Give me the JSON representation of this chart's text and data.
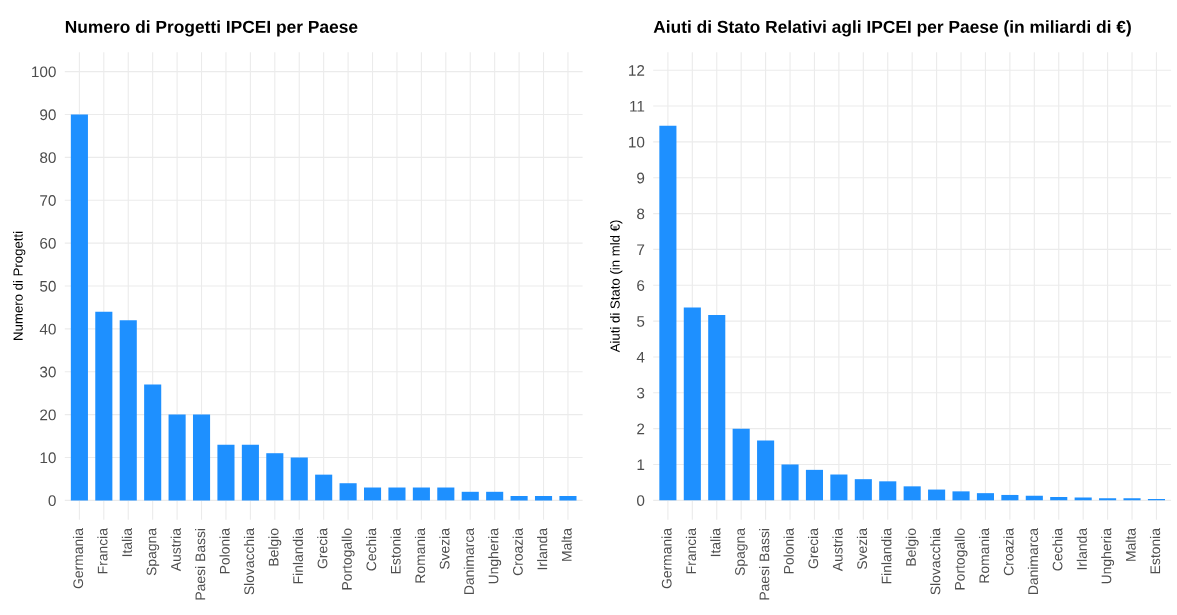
{
  "chart_data": [
    {
      "type": "bar",
      "title": "Numero di Progetti IPCEI per Paese",
      "ylabel": "Numero di Progetti",
      "categories": [
        "Germania",
        "Francia",
        "Italia",
        "Spagna",
        "Austria",
        "Paesi Bassi",
        "Polonia",
        "Slovacchia",
        "Belgio",
        "Finlandia",
        "Grecia",
        "Portogallo",
        "Cechia",
        "Estonia",
        "Romania",
        "Svezia",
        "Danimarca",
        "Ungheria",
        "Croazia",
        "Irlanda",
        "Malta"
      ],
      "values": [
        90,
        44,
        42,
        27,
        20,
        20,
        13,
        13,
        11,
        10,
        6,
        4,
        3,
        3,
        3,
        3,
        2,
        2,
        1,
        1,
        1
      ],
      "color": "#1e90ff",
      "ylim": [
        -4.5,
        104.5
      ],
      "yticks": [
        0,
        10,
        20,
        30,
        40,
        50,
        60,
        70,
        80,
        90,
        100
      ],
      "grid": true
    },
    {
      "type": "bar",
      "title": "Aiuti di Stato Relativi agli IPCEI per Paese (in miliardi di €)",
      "ylabel": "Aiuti di Stato (in mld €)",
      "categories": [
        "Germania",
        "Francia",
        "Italia",
        "Spagna",
        "Paesi Bassi",
        "Polonia",
        "Grecia",
        "Austria",
        "Svezia",
        "Finlandia",
        "Belgio",
        "Slovacchia",
        "Portogallo",
        "Romania",
        "Croazia",
        "Danimarca",
        "Cechia",
        "Irlanda",
        "Ungheria",
        "Malta",
        "Estonia"
      ],
      "values": [
        10.45,
        5.38,
        5.17,
        2.0,
        1.67,
        1.0,
        0.85,
        0.72,
        0.59,
        0.53,
        0.39,
        0.3,
        0.25,
        0.2,
        0.15,
        0.13,
        0.09,
        0.08,
        0.06,
        0.06,
        0.04
      ],
      "color": "#1e90ff",
      "ylim": [
        -0.54,
        12.5
      ],
      "yticks": [
        0,
        1,
        2,
        3,
        4,
        5,
        6,
        7,
        8,
        9,
        10,
        11,
        12
      ],
      "grid": true
    }
  ]
}
